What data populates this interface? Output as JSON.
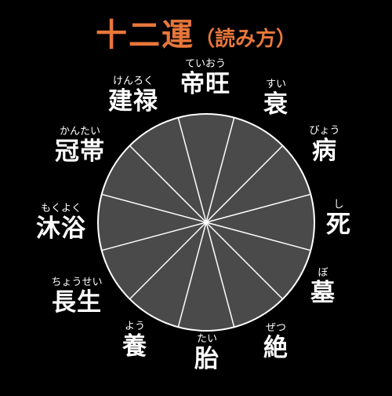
{
  "title": {
    "main": "十二運",
    "sub": "（読み方）"
  },
  "wheel": {
    "fill": "#4a4a4a",
    "stroke": "#ffffff"
  },
  "stages": [
    {
      "kanji": "帝旺",
      "reading": "ていおう"
    },
    {
      "kanji": "衰",
      "reading": "すい"
    },
    {
      "kanji": "病",
      "reading": "びょう"
    },
    {
      "kanji": "死",
      "reading": "し"
    },
    {
      "kanji": "墓",
      "reading": "ぼ"
    },
    {
      "kanji": "絶",
      "reading": "ぜつ"
    },
    {
      "kanji": "胎",
      "reading": "たい"
    },
    {
      "kanji": "養",
      "reading": "よう"
    },
    {
      "kanji": "長生",
      "reading": "ちょうせい"
    },
    {
      "kanji": "沐浴",
      "reading": "もくよく"
    },
    {
      "kanji": "冠帯",
      "reading": "かんたい"
    },
    {
      "kanji": "建禄",
      "reading": "けんろく"
    }
  ]
}
